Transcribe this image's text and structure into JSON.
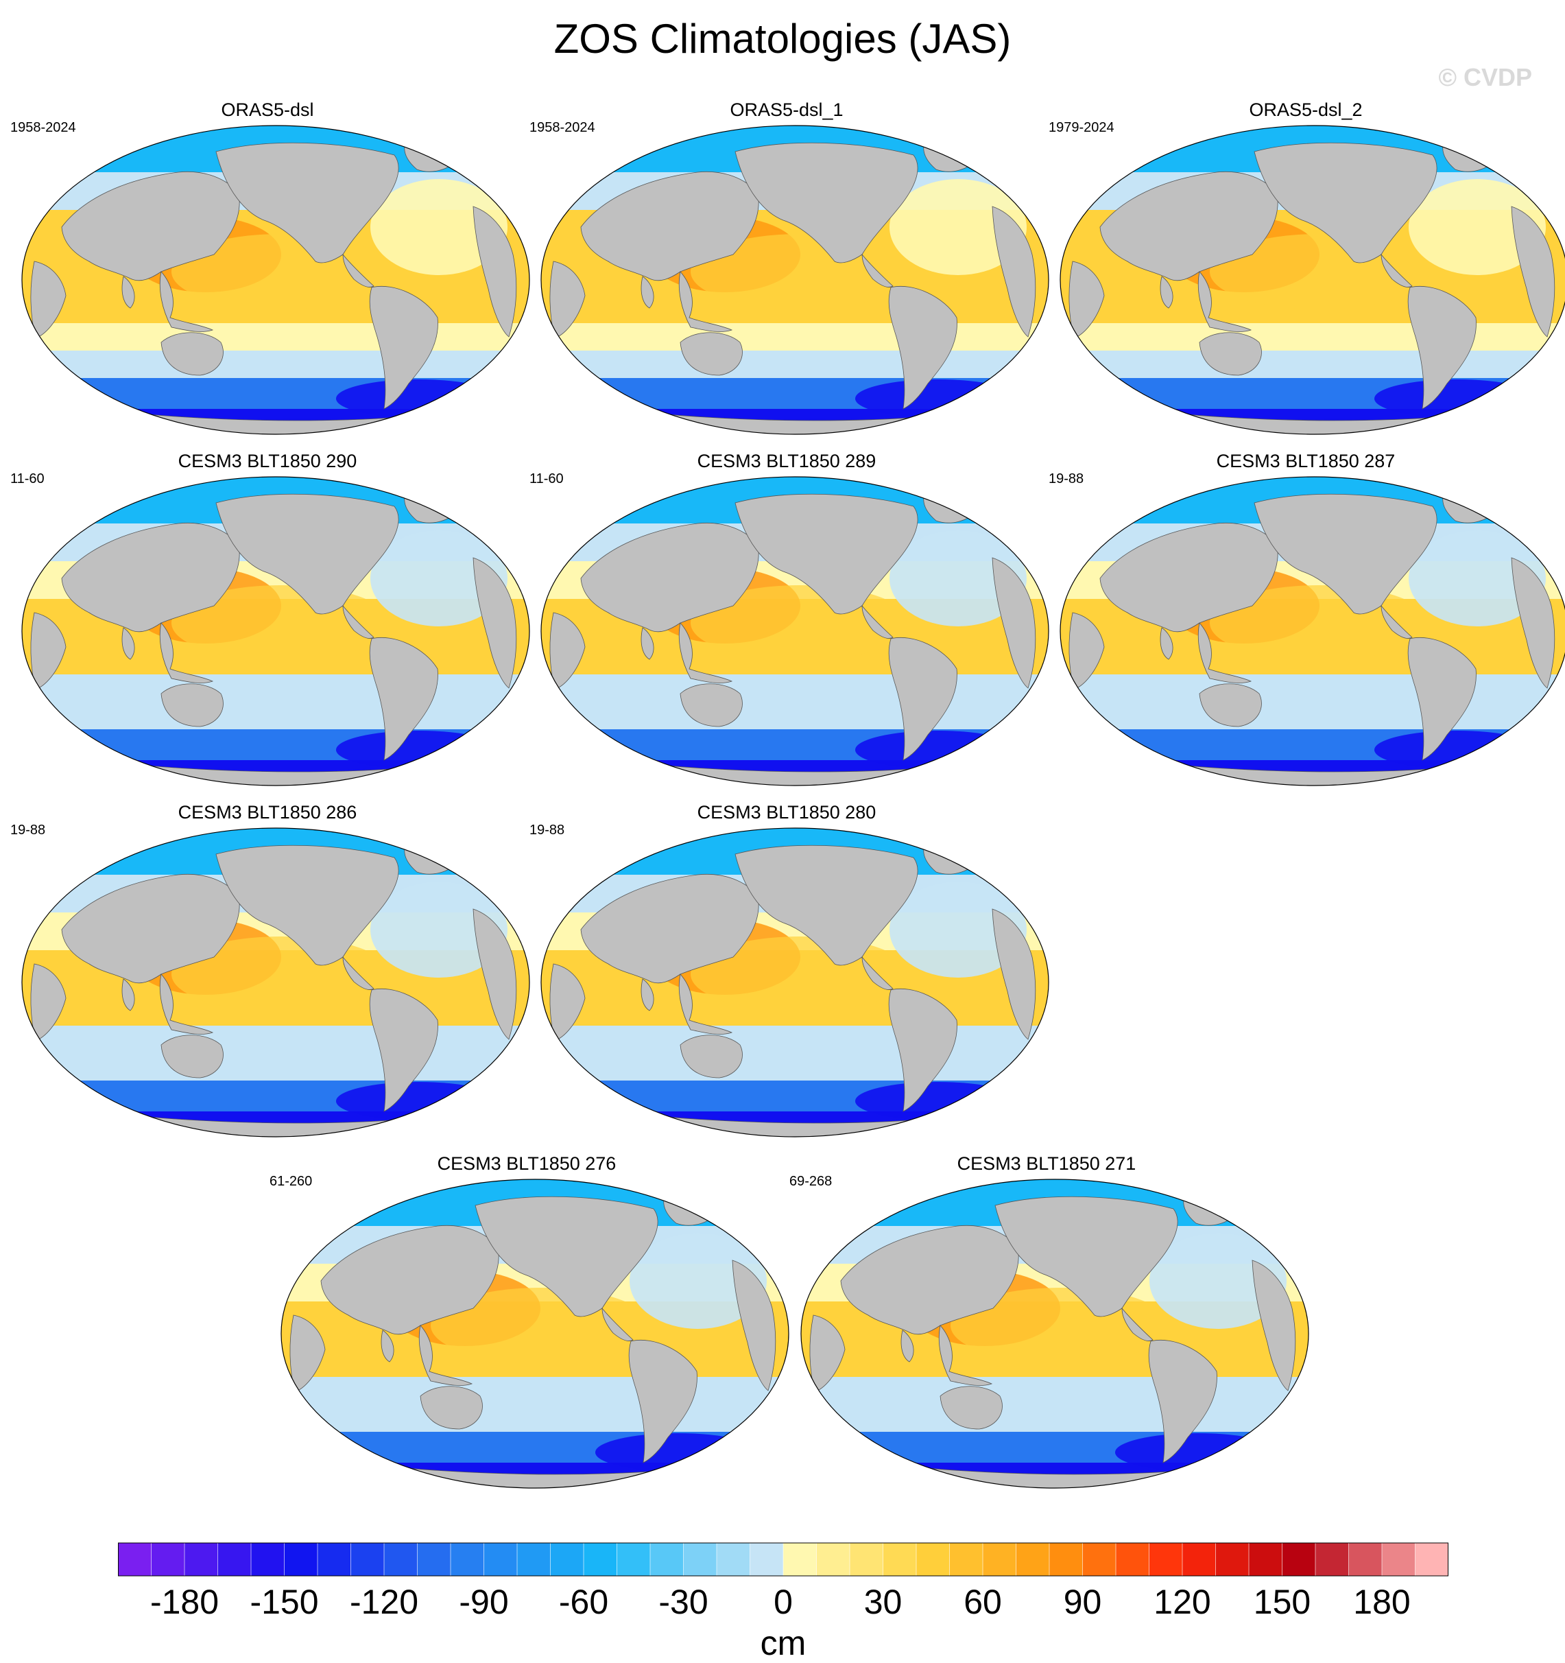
{
  "title": "ZOS Climatologies (JAS)",
  "watermark": "© CVDP",
  "chart_data": {
    "type": "heatmap",
    "title": "ZOS Climatologies (JAS)",
    "variable": "ZOS",
    "season": "JAS",
    "units": "cm",
    "colorbar": {
      "range": [
        -200,
        200
      ],
      "step": 10,
      "tick_labels": [
        "-180",
        "-150",
        "-120",
        "-90",
        "-60",
        "-30",
        "0",
        "30",
        "60",
        "90",
        "120",
        "150",
        "180"
      ],
      "tick_values": [
        -180,
        -150,
        -120,
        -90,
        -60,
        -30,
        0,
        30,
        60,
        90,
        120,
        150,
        180
      ],
      "colors": {
        "min": "#7a1ff0",
        "blue_deep": "#1010f0",
        "blue": "#2878f0",
        "cyan": "#18b8f8",
        "light_blue": "#c6e4f6",
        "pale_yellow": "#fff8b0",
        "yellow": "#ffd23c",
        "orange": "#ff9a10",
        "red": "#ff2a0a",
        "dark_red": "#b40010",
        "pink": "#ffb4b4",
        "land": "#c0c0c0"
      }
    },
    "panels": [
      {
        "name": "ORAS5-dsl",
        "period": "1958-2024"
      },
      {
        "name": "ORAS5-dsl_1",
        "period": "1958-2024"
      },
      {
        "name": "ORAS5-dsl_2",
        "period": "1979-2024"
      },
      {
        "name": "CESM3 BLT1850 290",
        "period": "11-60"
      },
      {
        "name": "CESM3 BLT1850 289",
        "period": "11-60"
      },
      {
        "name": "CESM3 BLT1850 287",
        "period": "19-88"
      },
      {
        "name": "CESM3 BLT1850 286",
        "period": "19-88"
      },
      {
        "name": "CESM3 BLT1850 280",
        "period": "19-88"
      },
      {
        "name": "CESM3 BLT1850 276",
        "period": "61-260"
      },
      {
        "name": "CESM3 BLT1850 271",
        "period": "69-268"
      }
    ]
  }
}
